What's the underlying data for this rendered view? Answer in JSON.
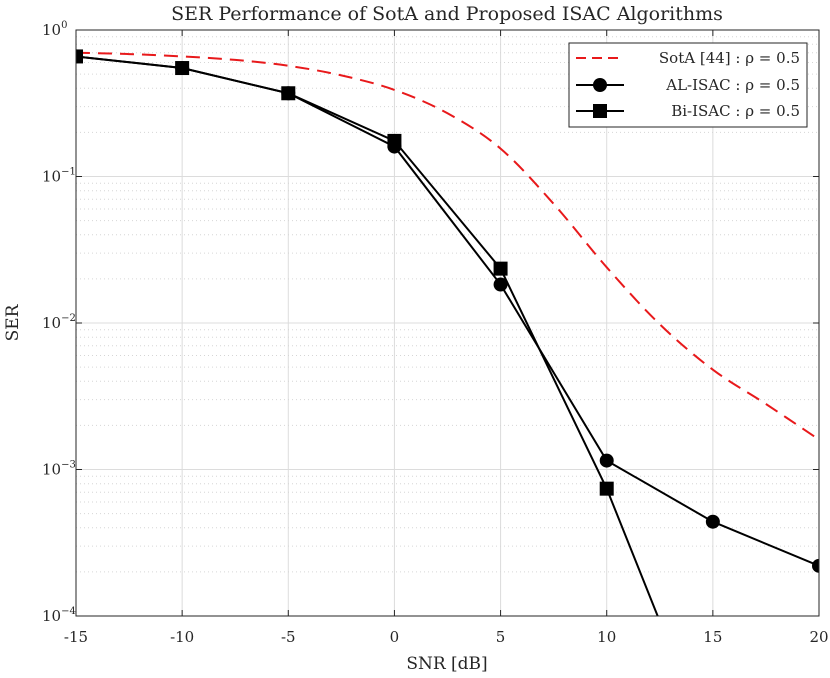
{
  "chart_data": {
    "type": "line",
    "title": "SER Performance of SotA and Proposed ISAC Algorithms",
    "xlabel": "SNR [dB]",
    "ylabel": "SER",
    "xlim": [
      -15,
      20
    ],
    "ylim": [
      0.0001,
      1
    ],
    "yscale": "log",
    "grid": true,
    "legend_position": "top-right",
    "x_ticks": [
      -15,
      -10,
      -5,
      0,
      5,
      10,
      15,
      20
    ],
    "x_tick_labels": [
      "-15",
      "-10",
      "-5",
      "0",
      "5",
      "10",
      "15",
      "20"
    ],
    "y_ticks": [
      1,
      0.1,
      0.01,
      0.001,
      0.0001
    ],
    "y_tick_labels": [
      {
        "base": "10",
        "exp": "0"
      },
      {
        "base": "10",
        "exp": "−1"
      },
      {
        "base": "10",
        "exp": "−2"
      },
      {
        "base": "10",
        "exp": "−3"
      },
      {
        "base": "10",
        "exp": "−4"
      }
    ],
    "series": [
      {
        "name": "SotA [44] : ρ = 0.5",
        "color": "#e8191b",
        "line_style": "dashed",
        "marker": "none",
        "x": [
          -15,
          -12.5,
          -10,
          -7.5,
          -5,
          -2.5,
          0,
          2.5,
          5,
          7.5,
          10,
          12.5,
          15,
          17.5,
          20
        ],
        "y": [
          0.7,
          0.685,
          0.66,
          0.625,
          0.57,
          0.49,
          0.39,
          0.27,
          0.155,
          0.065,
          0.024,
          0.0098,
          0.0048,
          0.0028,
          0.0016
        ]
      },
      {
        "name": "AL-ISAC : ρ = 0.5",
        "color": "#000000",
        "line_style": "solid",
        "marker": "circle",
        "x": [
          -15,
          -10,
          -5,
          0,
          5,
          10,
          15,
          20
        ],
        "y": [
          0.66,
          0.55,
          0.37,
          0.16,
          0.0183,
          0.00115,
          0.00044,
          0.00022
        ]
      },
      {
        "name": "Bi-ISAC  : ρ = 0.5",
        "color": "#000000",
        "line_style": "solid",
        "marker": "square",
        "x": [
          -15,
          -10,
          -5,
          0,
          5,
          10,
          12.4
        ],
        "y": [
          0.66,
          0.55,
          0.37,
          0.175,
          0.0235,
          0.00074,
          0.0001
        ]
      }
    ]
  }
}
